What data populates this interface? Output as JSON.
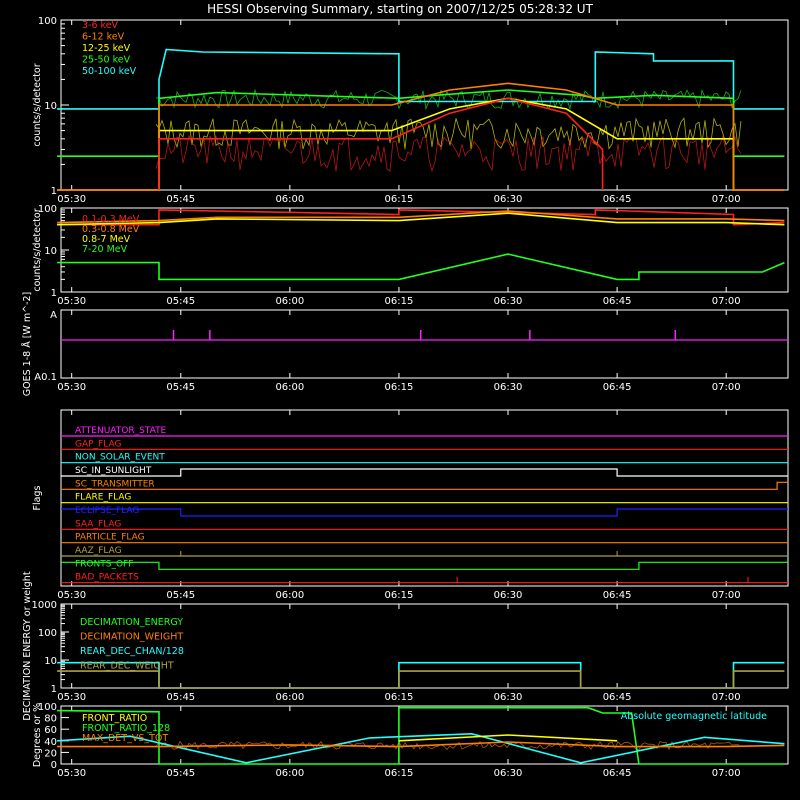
{
  "title": "HESSI Observing Summary, starting on 2007/12/25 05:28:32 UT",
  "colors": {
    "background": "#000000",
    "axes": "#ffffff",
    "red": "#ff2020",
    "orange": "#ff8000",
    "yellow": "#ffff00",
    "green": "#20ff20",
    "cyan": "#20ffff",
    "magenta": "#ff20ff",
    "blue": "#2020ff",
    "olive": "#b0a040"
  },
  "chart_data": [
    {
      "type": "line",
      "ylabel": "counts/s/detector",
      "yscale": "log",
      "ylim": [
        1,
        100
      ],
      "yticks": [
        "1",
        "10",
        "100"
      ],
      "xticks": [
        "05:30",
        "05:45",
        "06:00",
        "06:15",
        "06:30",
        "06:45",
        "07:00"
      ],
      "legend": [
        "3-6 keV",
        "6-12 keV",
        "12-25 keV",
        "25-50 keV",
        "50-100 keV"
      ],
      "legend_colors": [
        "red",
        "orange",
        "yellow",
        "green",
        "cyan"
      ],
      "series": [
        {
          "name": "50-100 keV",
          "color": "cyan",
          "x": [
            "05:28",
            "05:42",
            "05:42",
            "05:43",
            "05:48",
            "06:15",
            "06:15",
            "06:42",
            "06:42",
            "06:50",
            "06:50",
            "07:01",
            "07:01",
            "07:08"
          ],
          "y": [
            9,
            9,
            20,
            45,
            42,
            40,
            11,
            11,
            42,
            40,
            33,
            33,
            9,
            9
          ]
        },
        {
          "name": "25-50 keV",
          "color": "green",
          "x": [
            "05:28",
            "05:42",
            "05:42",
            "05:50",
            "06:15",
            "06:20",
            "06:30",
            "06:40",
            "06:42",
            "06:50",
            "07:01",
            "07:01",
            "07:08"
          ],
          "y": [
            2.5,
            2.5,
            12,
            14,
            12,
            13,
            15,
            13,
            12,
            13,
            12,
            2.5,
            2.5
          ]
        },
        {
          "name": "12-25 keV",
          "color": "yellow",
          "x": [
            "05:28",
            "05:42",
            "05:42",
            "06:00",
            "06:14",
            "06:22",
            "06:30",
            "06:38",
            "06:45",
            "07:01",
            "07:01",
            "07:08"
          ],
          "y": [
            1,
            1,
            5,
            5,
            5,
            9,
            12,
            9,
            4,
            4,
            1,
            1
          ]
        },
        {
          "name": "6-12 keV",
          "color": "orange",
          "x": [
            "05:28",
            "05:42",
            "05:42",
            "06:00",
            "06:14",
            "06:22",
            "06:30",
            "06:38",
            "06:45",
            "07:01",
            "07:01",
            "07:08"
          ],
          "y": [
            1,
            1,
            10,
            10,
            10,
            15,
            18,
            15,
            10,
            10,
            1,
            1
          ]
        },
        {
          "name": "3-6 keV",
          "color": "red",
          "x": [
            "05:42",
            "05:42",
            "06:00",
            "06:14",
            "06:22",
            "06:30",
            "06:38",
            "06:43",
            "06:43"
          ],
          "y": [
            1,
            4,
            4,
            4,
            8,
            12,
            8,
            3,
            1
          ]
        }
      ]
    },
    {
      "type": "line",
      "ylabel": "counts/s/detector",
      "yscale": "log",
      "ylim": [
        1,
        100
      ],
      "yticks": [
        "1",
        "10",
        "100"
      ],
      "xticks": [
        "05:30",
        "05:45",
        "06:00",
        "06:15",
        "06:30",
        "06:45",
        "07:00"
      ],
      "legend": [
        "0.1-0.3 MeV",
        "0.3-0.8 MeV",
        "0.8-7 MeV",
        "7-20 MeV"
      ],
      "legend_colors": [
        "red",
        "orange",
        "yellow",
        "green"
      ],
      "series": [
        {
          "name": "0.1-0.3 MeV",
          "color": "red",
          "x": [
            "05:28",
            "05:42",
            "05:42",
            "06:15",
            "06:15",
            "06:42",
            "06:42",
            "07:01",
            "07:01",
            "07:08"
          ],
          "y": [
            40,
            40,
            90,
            70,
            90,
            70,
            90,
            70,
            40,
            45
          ]
        },
        {
          "name": "0.3-0.8 MeV",
          "color": "orange",
          "x": [
            "05:28",
            "05:42",
            "05:50",
            "06:15",
            "06:30",
            "06:45",
            "07:00",
            "07:08"
          ],
          "y": [
            45,
            50,
            60,
            60,
            85,
            55,
            55,
            50
          ]
        },
        {
          "name": "0.8-7 MeV",
          "color": "yellow",
          "x": [
            "05:28",
            "05:42",
            "05:50",
            "06:15",
            "06:30",
            "06:45",
            "07:00",
            "07:08"
          ],
          "y": [
            40,
            45,
            55,
            50,
            75,
            45,
            45,
            40
          ]
        },
        {
          "name": "7-20 MeV",
          "color": "green",
          "x": [
            "05:28",
            "05:42",
            "05:42",
            "05:50",
            "06:15",
            "06:30",
            "06:45",
            "06:48",
            "06:48",
            "07:05",
            "07:08"
          ],
          "y": [
            5,
            5,
            2,
            2,
            2,
            8,
            2,
            2,
            3,
            3,
            5
          ]
        }
      ]
    },
    {
      "type": "line",
      "ylabel": "GOES 1-8 Å [W m^-2]",
      "yticks": [
        "A",
        "A0.1"
      ],
      "xticks": [
        "05:30",
        "05:45",
        "06:00",
        "06:15",
        "06:30",
        "06:45",
        "07:00"
      ]
    },
    {
      "type": "table",
      "ylabel": "Flags",
      "xticks": [
        "05:30",
        "05:45",
        "06:00",
        "06:15",
        "06:30",
        "06:45",
        "07:00"
      ],
      "flags": [
        {
          "name": "ATTENUATOR_STATE",
          "color": "magenta"
        },
        {
          "name": "GAP_FLAG",
          "color": "red"
        },
        {
          "name": "NON_SOLAR_EVENT",
          "color": "cyan"
        },
        {
          "name": "SC_IN_SUNLIGHT",
          "color": "white"
        },
        {
          "name": "SC_TRANSMITTER",
          "color": "orange"
        },
        {
          "name": "FLARE_FLAG",
          "color": "yellow"
        },
        {
          "name": "ECLIPSE_FLAG",
          "color": "blue"
        },
        {
          "name": "SAA_FLAG",
          "color": "red"
        },
        {
          "name": "PARTICLE_FLAG",
          "color": "orange"
        },
        {
          "name": "AAZ_FLAG",
          "color": "olive"
        },
        {
          "name": "FRONTS_OFF",
          "color": "green"
        },
        {
          "name": "BAD_PACKETS",
          "color": "red"
        }
      ]
    },
    {
      "type": "line",
      "ylabel": "DECIMATION ENERGY or weight",
      "yscale": "log",
      "ylim": [
        1,
        1000
      ],
      "yticks": [
        "1",
        "10",
        "100",
        "1000"
      ],
      "xticks": [
        "05:30",
        "05:45",
        "06:00",
        "06:15",
        "06:30",
        "06:45",
        "07:00"
      ],
      "legend": [
        "DECIMATION_ENERGY",
        "DECIMATION_WEIGHT",
        "REAR_DEC_CHAN/128",
        "REAR_DEC_WEIGHT"
      ],
      "legend_colors": [
        "green",
        "orange",
        "cyan",
        "olive"
      ],
      "series": [
        {
          "name": "REAR_DEC_CHAN/128",
          "color": "cyan",
          "x": [
            "05:28",
            "05:42",
            "05:42",
            "06:15",
            "06:15",
            "06:40",
            "06:40",
            "07:01",
            "07:01",
            "07:08"
          ],
          "y": [
            8,
            8,
            1,
            1,
            8,
            8,
            1,
            1,
            8,
            8
          ]
        },
        {
          "name": "REAR_DEC_WEIGHT",
          "color": "olive",
          "x": [
            "05:28",
            "05:42",
            "05:42",
            "06:15",
            "06:15",
            "06:40",
            "06:40",
            "07:01",
            "07:01",
            "07:08"
          ],
          "y": [
            4,
            4,
            1,
            1,
            4,
            4,
            1,
            1,
            4,
            4
          ]
        }
      ]
    },
    {
      "type": "line",
      "ylabel": "Degrees or %",
      "ylim": [
        0,
        100
      ],
      "yticks": [
        "0",
        "20",
        "40",
        "60",
        "80",
        "100"
      ],
      "xticks": [
        "05:30",
        "05:45",
        "06:00",
        "06:15",
        "06:30",
        "06:45",
        "07:00"
      ],
      "legend": [
        "FRONT_RATIO",
        "FRONT_RATIO_128",
        "MAX_DET_VS_TOT"
      ],
      "legend_colors": [
        "yellow",
        "green",
        "orange"
      ],
      "annotation": "Absolute geomagnetic latitude",
      "series": [
        {
          "name": "FRONT_RATIO_128",
          "color": "green",
          "x": [
            "05:28",
            "05:42",
            "05:42",
            "06:15",
            "06:15",
            "06:41",
            "06:43",
            "06:47",
            "06:48",
            "07:08"
          ],
          "y": [
            92,
            90,
            0,
            0,
            97,
            97,
            88,
            88,
            0,
            0
          ]
        },
        {
          "name": "Absolute geomagnetic latitude",
          "color": "cyan",
          "x": [
            "05:28",
            "05:38",
            "05:54",
            "06:11",
            "06:25",
            "06:40",
            "06:57",
            "07:08"
          ],
          "y": [
            40,
            48,
            2,
            45,
            52,
            2,
            46,
            35
          ]
        },
        {
          "name": "MAX_DET_VS_TOT",
          "color": "orange",
          "x": [
            "05:28",
            "05:42",
            "06:00",
            "06:15",
            "06:30",
            "06:45",
            "07:00",
            "07:08"
          ],
          "y": [
            30,
            30,
            33,
            30,
            38,
            30,
            30,
            32
          ]
        },
        {
          "name": "FRONT_RATIO",
          "color": "yellow",
          "x": [
            "06:15",
            "06:30",
            "06:45"
          ],
          "y": [
            40,
            50,
            40
          ]
        }
      ]
    }
  ]
}
